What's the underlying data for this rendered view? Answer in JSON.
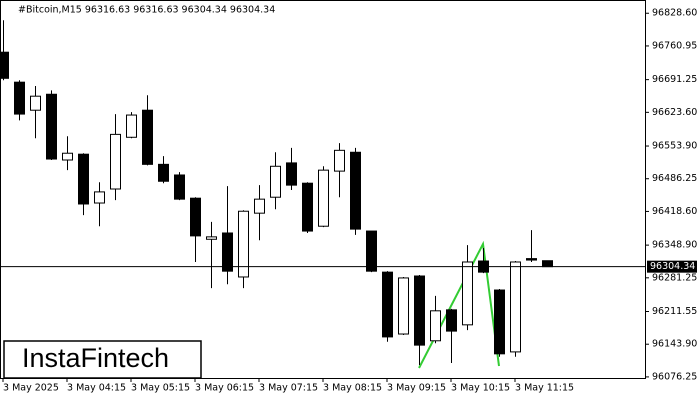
{
  "chart_data": {
    "type": "candlestick",
    "title": "#Bitcoin,M15  96316.63 96316.63 96304.34 96304.34",
    "watermark": "InstaFintech",
    "categories": [
      "3 May 2025",
      null,
      null,
      null,
      "3 May 04:15",
      null,
      null,
      null,
      "3 May 05:15",
      null,
      null,
      null,
      "3 May 06:15",
      null,
      null,
      null,
      "3 May 07:15",
      null,
      null,
      null,
      "3 May 08:15",
      null,
      null,
      null,
      "3 May 09:15",
      null,
      null,
      null,
      "3 May 10:15",
      null,
      null,
      null,
      "3 May 11:15",
      null,
      null
    ],
    "open": [
      96748,
      96686,
      96628,
      96661,
      96525,
      96537,
      96436,
      96465,
      96572,
      96628,
      96516,
      96494,
      96446,
      96361,
      96374,
      96283,
      96415,
      96448,
      96519,
      96477,
      96388,
      96502,
      96541,
      96378,
      96293,
      96165,
      96285,
      96151,
      96215,
      96184,
      96316,
      96256,
      96128,
      96321,
      96316.63
    ],
    "high": [
      96814,
      96690,
      96678,
      96669,
      96574,
      96539,
      96479,
      96620,
      96624,
      96659,
      96533,
      96500,
      96448,
      96397,
      96471,
      96421,
      96473,
      96541,
      96550,
      96479,
      96512,
      96560,
      96550,
      96378,
      96295,
      96283,
      96287,
      96244,
      96217,
      96349,
      96343,
      96258,
      96316,
      96380,
      96316.63
    ],
    "low": [
      96690,
      96607,
      96570,
      96525,
      96504,
      96411,
      96388,
      96442,
      96570,
      96514,
      96477,
      96442,
      96314,
      96260,
      96268,
      96260,
      96359,
      96423,
      96463,
      96374,
      96386,
      96448,
      96370,
      96293,
      96149,
      96163,
      96101,
      96146,
      96105,
      96173,
      96291,
      96118,
      96118,
      96314,
      96304.34
    ],
    "close": [
      96694,
      96620,
      96657,
      96527,
      96539,
      96434,
      96459,
      96578,
      96618,
      96516,
      96481,
      96444,
      96368,
      96366,
      96295,
      96419,
      96444,
      96512,
      96473,
      96378,
      96504,
      96545,
      96382,
      96295,
      96159,
      96281,
      96142,
      96213,
      96171,
      96314,
      96293,
      96124,
      96314,
      96318,
      96304.34
    ],
    "up_color": "#ffffff",
    "down_color": "#000000",
    "current_price": 96304.34,
    "ylim": [
      96074,
      96856
    ],
    "yticks": [
      {
        "value": 96828.6,
        "label": "96828.60"
      },
      96760.95,
      96691.25,
      {
        "value": 96623.6,
        "label": "96623.60"
      },
      {
        "value": 96553.9,
        "label": "96553.90"
      },
      96486.25,
      {
        "value": 96418.6,
        "label": "96418.60"
      },
      {
        "value": 96348.9,
        "label": "96348.90"
      },
      96281.25,
      96211.55,
      {
        "value": 96143.9,
        "label": "96143.90"
      },
      96076.25
    ]
  }
}
